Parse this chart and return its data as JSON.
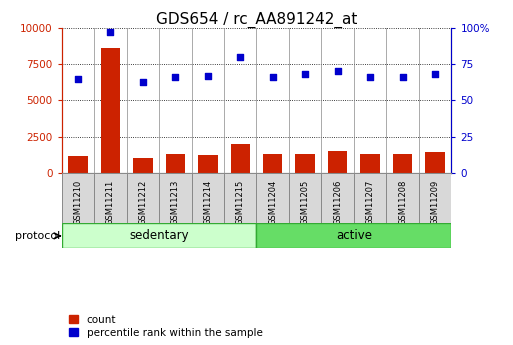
{
  "title": "GDS654 / rc_AA891242_at",
  "samples": [
    "GSM11210",
    "GSM11211",
    "GSM11212",
    "GSM11213",
    "GSM11214",
    "GSM11215",
    "GSM11204",
    "GSM11205",
    "GSM11206",
    "GSM11207",
    "GSM11208",
    "GSM11209"
  ],
  "counts": [
    1200,
    8600,
    1050,
    1300,
    1250,
    2000,
    1350,
    1350,
    1550,
    1300,
    1350,
    1450
  ],
  "percentiles": [
    65,
    97,
    63,
    66,
    67,
    80,
    66,
    68,
    70,
    66,
    66,
    68
  ],
  "bar_color": "#cc2200",
  "dot_color": "#0000cc",
  "ylim_left": [
    0,
    10000
  ],
  "ylim_right": [
    0,
    100
  ],
  "yticks_left": [
    0,
    2500,
    5000,
    7500,
    10000
  ],
  "yticks_right": [
    0,
    25,
    50,
    75,
    100
  ],
  "ytick_labels_left": [
    "0",
    "2500",
    "5000",
    "7500",
    "10000"
  ],
  "ytick_labels_right": [
    "0",
    "25",
    "50",
    "75",
    "100%"
  ],
  "groups": [
    {
      "label": "sedentary",
      "start": 0,
      "end": 6,
      "color": "#ccffcc"
    },
    {
      "label": "active",
      "start": 6,
      "end": 12,
      "color": "#66dd66"
    }
  ],
  "protocol_label": "protocol",
  "legend_items": [
    {
      "color": "#cc2200",
      "label": "count"
    },
    {
      "color": "#0000cc",
      "label": "percentile rank within the sample"
    }
  ],
  "tick_label_color_left": "#cc2200",
  "tick_label_color_right": "#0000cc",
  "title_fontsize": 11,
  "col_bg": "#d8d8d8",
  "col_border": "#888888"
}
